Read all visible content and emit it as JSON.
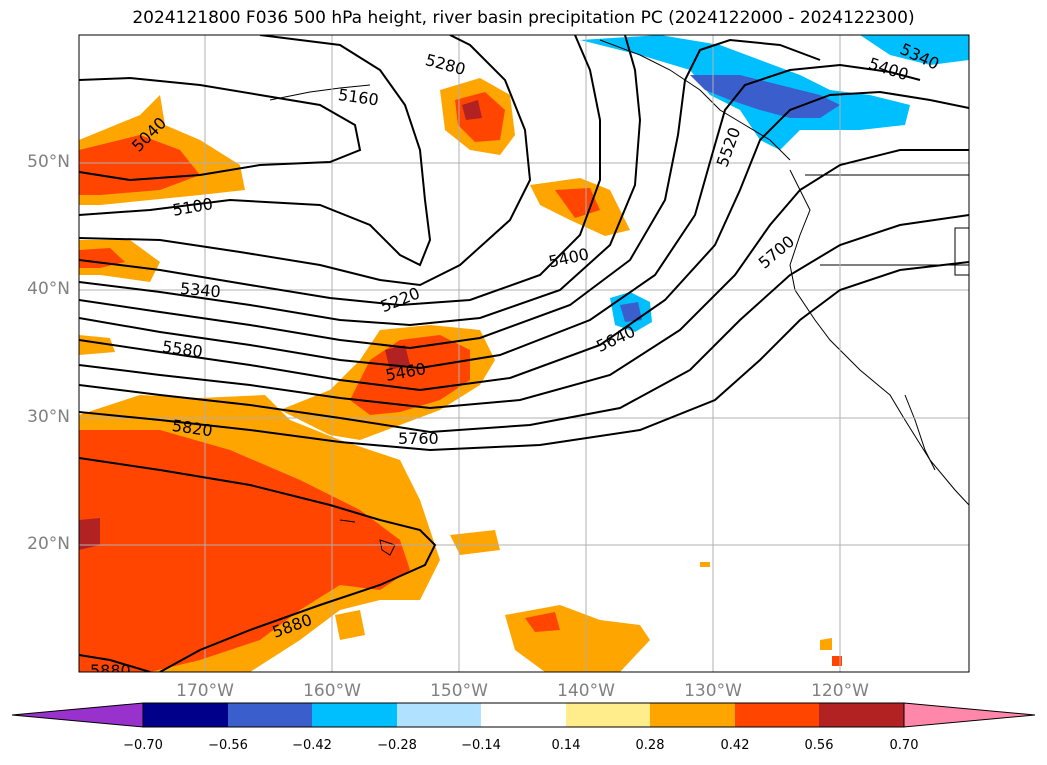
{
  "title": "2024121800 F036 500 hPa height, river basin precipitation PC (2024122000 - 2024122300)",
  "lat_labels": [
    "50°N",
    "40°N",
    "30°N",
    "20°N"
  ],
  "lon_labels": [
    "170°W",
    "160°W",
    "150°W",
    "140°W",
    "130°W",
    "120°W"
  ],
  "contour_labels": [
    "5040",
    "5100",
    "5160",
    "5280",
    "5340",
    "5400",
    "5460",
    "5580",
    "5640",
    "5700",
    "5760",
    "5820",
    "5880",
    "5880",
    "5220",
    "5520",
    "5340",
    "5400"
  ],
  "colorbar": {
    "colors": [
      "#9932cc",
      "#00008b",
      "#3a5fcd",
      "#00bfff",
      "#b0e2ff",
      "#ffffff",
      "#ffec8b",
      "#ffa500",
      "#ff4500",
      "#b22222",
      "#ff88aa"
    ],
    "ticks": [
      "−0.70",
      "−0.56",
      "−0.42",
      "−0.28",
      "−0.14",
      "0.14",
      "0.28",
      "0.42",
      "0.56",
      "0.70"
    ]
  },
  "map": {
    "ocean_color": "#ffffff",
    "land_outline": "#000000",
    "grid_color": "#b0b0b0"
  }
}
